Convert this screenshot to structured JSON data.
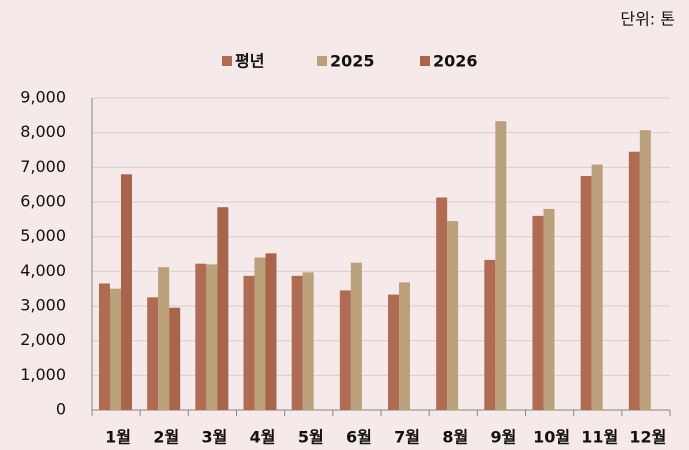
{
  "chart_data": {
    "type": "bar",
    "unit_note": "단위: 톤",
    "categories": [
      "1월",
      "2월",
      "3월",
      "4월",
      "5월",
      "6월",
      "7월",
      "8월",
      "9월",
      "10월",
      "11월",
      "12월"
    ],
    "series": [
      {
        "name": "평년",
        "color": "#b06b53",
        "values": [
          3650,
          3250,
          4220,
          3870,
          3870,
          3450,
          3330,
          6130,
          4330,
          5600,
          6750,
          7450
        ]
      },
      {
        "name": "2025",
        "color": "#baa07b",
        "values": [
          3500,
          4120,
          4200,
          4400,
          3970,
          4250,
          3680,
          5450,
          8330,
          5800,
          7080,
          8070
        ]
      },
      {
        "name": "2026",
        "color": "#a9644c",
        "values": [
          6800,
          2950,
          5850,
          4520,
          null,
          null,
          null,
          null,
          null,
          null,
          null,
          null
        ]
      }
    ],
    "ylim": [
      0,
      9000
    ],
    "yticks": [
      0,
      {
        "value": 1000,
        "label": "1,000"
      },
      {
        "value": 2000,
        "label": "2,000"
      },
      {
        "value": 3000,
        "label": "3,000"
      },
      {
        "value": 4000,
        "label": "4,000"
      },
      {
        "value": 5000,
        "label": "5,000"
      },
      {
        "value": 6000,
        "label": "6,000"
      },
      {
        "value": 7000,
        "label": "7,000"
      },
      {
        "value": 8000,
        "label": "8,000"
      },
      {
        "value": 9000,
        "label": "9,000"
      }
    ],
    "grid": true
  }
}
